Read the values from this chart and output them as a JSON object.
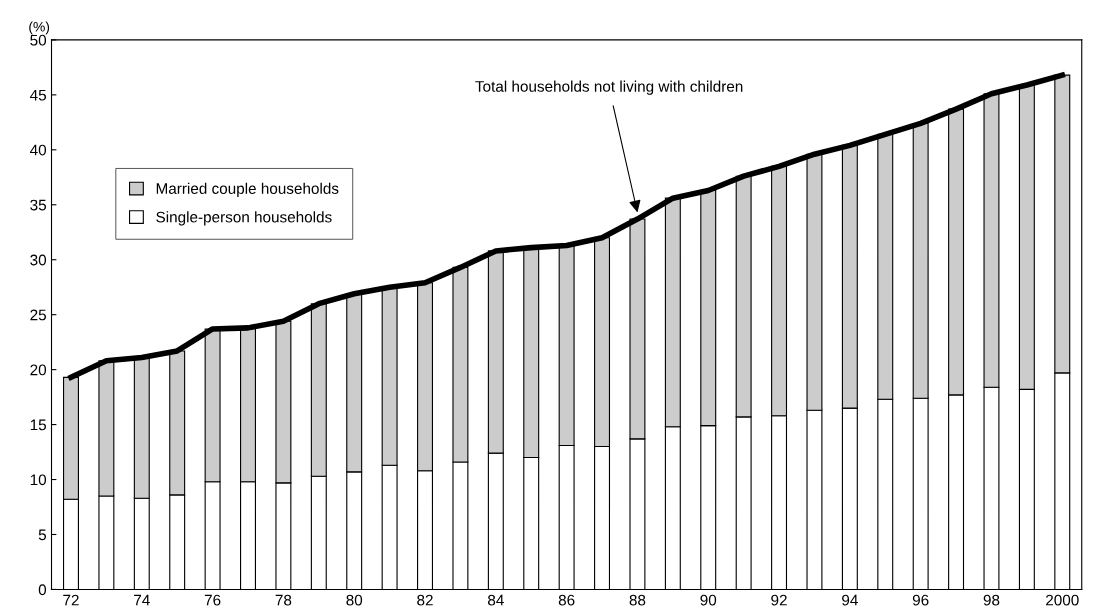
{
  "chart_data": {
    "type": "bar",
    "stacked": true,
    "ylabel": "(%)",
    "categories": [
      "72",
      null,
      "74",
      null,
      "76",
      null,
      "78",
      null,
      "80",
      null,
      "82",
      null,
      "84",
      null,
      "86",
      null,
      "88",
      null,
      "90",
      null,
      "92",
      null,
      "94",
      null,
      "96",
      null,
      "98",
      null,
      "2000"
    ],
    "series": [
      {
        "name": "Single-person households",
        "color": "#ffffff",
        "values": [
          8.2,
          8.5,
          8.3,
          8.6,
          9.8,
          9.8,
          9.7,
          10.3,
          10.7,
          11.3,
          10.8,
          11.6,
          12.4,
          12.0,
          13.1,
          13.0,
          13.7,
          14.8,
          14.9,
          15.7,
          15.8,
          16.3,
          16.5,
          17.3,
          17.4,
          17.7,
          18.4,
          18.2,
          19.7
        ]
      },
      {
        "name": "Married couple households",
        "color": "#cccccc",
        "values": [
          11.1,
          12.3,
          12.8,
          13.1,
          13.9,
          14.0,
          14.7,
          15.7,
          16.2,
          16.2,
          17.1,
          17.7,
          18.4,
          19.1,
          18.2,
          19.0,
          20.0,
          20.8,
          21.4,
          21.9,
          22.7,
          23.3,
          23.9,
          24.1,
          25.0,
          26.0,
          26.7,
          27.7,
          27.1
        ]
      },
      {
        "type": "line",
        "color": "#000000",
        "values": [
          19.3,
          20.8,
          21.1,
          21.7,
          23.7,
          23.8,
          24.4,
          26.0,
          26.9,
          27.5,
          27.9,
          29.3,
          30.8,
          31.1,
          31.3,
          32.0,
          33.7,
          35.6,
          36.3,
          37.6,
          38.5,
          39.6,
          40.4,
          41.4,
          42.4,
          43.7,
          45.1,
          45.9,
          46.8
        ]
      }
    ],
    "ylim": [
      0,
      50
    ],
    "yticks": [
      0,
      5,
      10,
      15,
      20,
      25,
      30,
      35,
      40,
      45,
      50
    ],
    "annotations": [
      {
        "text": "Total households not living with children",
        "x": "88",
        "y": 33.7
      }
    ],
    "grid": false,
    "legend": "top left"
  }
}
